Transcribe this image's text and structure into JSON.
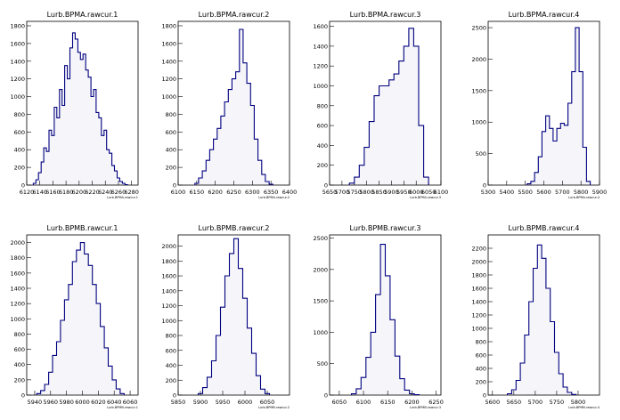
{
  "chart_data": [
    {
      "type": "histogram",
      "title": "Lurb.BPMA.rawcur.1",
      "axis_note": "Lurb.BPMA.rawcur.1",
      "xlim": [
        6120,
        6290
      ],
      "ylim": [
        0,
        1850
      ],
      "x_ticks": [
        6120,
        6140,
        6160,
        6180,
        6200,
        6220,
        6240,
        6260,
        6280
      ],
      "y_ticks": [
        0,
        200,
        400,
        600,
        800,
        1000,
        1200,
        1400,
        1600,
        1800
      ],
      "x": [
        6132,
        6136,
        6140,
        6144,
        6148,
        6152,
        6156,
        6160,
        6164,
        6168,
        6172,
        6176,
        6180,
        6184,
        6188,
        6192,
        6196,
        6200,
        6204,
        6208,
        6212,
        6216,
        6220,
        6224,
        6228,
        6232,
        6236,
        6240,
        6244,
        6248,
        6252,
        6256,
        6260,
        6264,
        6268,
        6272
      ],
      "values": [
        20,
        60,
        140,
        260,
        420,
        380,
        620,
        560,
        880,
        760,
        1080,
        900,
        1350,
        1200,
        1550,
        1720,
        1650,
        1500,
        1420,
        1480,
        1300,
        1220,
        1000,
        1080,
        820,
        760,
        560,
        620,
        400,
        360,
        220,
        160,
        80,
        40,
        20,
        5
      ]
    },
    {
      "type": "histogram",
      "title": "Lurb.BPMA.rawcur.2",
      "axis_note": "Lurb.BPMA.rawcur.2",
      "xlim": [
        6100,
        6400
      ],
      "ylim": [
        0,
        1850
      ],
      "x_ticks": [
        6100,
        6150,
        6200,
        6250,
        6300,
        6350,
        6400
      ],
      "y_ticks": [
        0,
        200,
        400,
        600,
        800,
        1000,
        1200,
        1400,
        1600,
        1800
      ],
      "x": [
        6150,
        6160,
        6170,
        6180,
        6190,
        6200,
        6210,
        6220,
        6230,
        6240,
        6250,
        6260,
        6270,
        6280,
        6290,
        6300,
        6310,
        6320,
        6330,
        6340,
        6350
      ],
      "values": [
        20,
        80,
        160,
        280,
        400,
        520,
        640,
        780,
        940,
        1080,
        1200,
        1280,
        1760,
        1380,
        1150,
        900,
        520,
        280,
        120,
        40,
        10
      ]
    },
    {
      "type": "histogram",
      "title": "Lurb.BPMA.rawcur.3",
      "axis_note": "Lurb.BPMA.rawcur.3",
      "xlim": [
        5650,
        6100
      ],
      "ylim": [
        0,
        1650
      ],
      "x_ticks": [
        5650,
        5700,
        5750,
        5800,
        5850,
        5900,
        5950,
        6000,
        6050,
        6100
      ],
      "y_ticks": [
        0,
        200,
        400,
        600,
        800,
        1000,
        1200,
        1400,
        1600
      ],
      "x": [
        5740,
        5760,
        5780,
        5800,
        5820,
        5840,
        5860,
        5880,
        5900,
        5920,
        5940,
        5960,
        5980,
        6000,
        6020,
        6040
      ],
      "values": [
        20,
        80,
        200,
        380,
        640,
        900,
        1000,
        1000,
        1060,
        1120,
        1250,
        1400,
        1580,
        1400,
        600,
        80
      ]
    },
    {
      "type": "histogram",
      "title": "Lurb.BPMA.rawcur.4",
      "axis_note": "Lurb.BPMA.rawcur.4",
      "xlim": [
        5300,
        5900
      ],
      "ylim": [
        0,
        2600
      ],
      "x_ticks": [
        5300,
        5400,
        5500,
        5600,
        5700,
        5800,
        5900
      ],
      "y_ticks": [
        0,
        500,
        1000,
        1500,
        2000,
        2500
      ],
      "x": [
        5520,
        5540,
        5560,
        5580,
        5600,
        5620,
        5640,
        5660,
        5680,
        5700,
        5720,
        5740,
        5760,
        5780,
        5800,
        5820,
        5840
      ],
      "values": [
        20,
        60,
        200,
        450,
        850,
        1100,
        900,
        700,
        900,
        980,
        950,
        1300,
        1800,
        2500,
        1800,
        600,
        60
      ]
    },
    {
      "type": "histogram",
      "title": "Lurb.BPMB.rawcur.1",
      "axis_note": "Lurb.BPMB.rawcur.1",
      "xlim": [
        5930,
        6070
      ],
      "ylim": [
        0,
        2100
      ],
      "x_ticks": [
        5940,
        5960,
        5980,
        6000,
        6020,
        6040,
        6060
      ],
      "y_ticks": [
        0,
        200,
        400,
        600,
        800,
        1000,
        1200,
        1400,
        1600,
        1800,
        2000
      ],
      "x": [
        5945,
        5950,
        5955,
        5960,
        5965,
        5970,
        5975,
        5980,
        5985,
        5990,
        5995,
        6000,
        6005,
        6010,
        6015,
        6020,
        6025,
        6030,
        6035,
        6040,
        6045,
        6050
      ],
      "values": [
        20,
        60,
        140,
        300,
        520,
        700,
        980,
        1250,
        1450,
        1750,
        1900,
        2000,
        1850,
        1700,
        1450,
        1200,
        900,
        620,
        380,
        200,
        80,
        20
      ]
    },
    {
      "type": "histogram",
      "title": "Lurb.BPMB.rawcur.2",
      "axis_note": "Lurb.BPMB.rawcur.2",
      "xlim": [
        5850,
        6100
      ],
      "ylim": [
        0,
        2150
      ],
      "x_ticks": [
        5850,
        5900,
        5950,
        6000,
        6050
      ],
      "y_ticks": [
        0,
        200,
        400,
        600,
        800,
        1000,
        1200,
        1400,
        1600,
        1800,
        2000
      ],
      "x": [
        5900,
        5910,
        5920,
        5930,
        5940,
        5950,
        5960,
        5970,
        5980,
        5990,
        6000,
        6010,
        6020,
        6030,
        6040,
        6050
      ],
      "values": [
        20,
        100,
        240,
        460,
        800,
        1180,
        1600,
        1900,
        2100,
        1700,
        1300,
        900,
        560,
        260,
        80,
        20
      ]
    },
    {
      "type": "histogram",
      "title": "Lurb.BPMB.rawcur.3",
      "axis_note": "Lurb.BPMB.rawcur.3",
      "xlim": [
        6030,
        6260
      ],
      "ylim": [
        0,
        2550
      ],
      "x_ticks": [
        6050,
        6100,
        6150,
        6200,
        6250
      ],
      "y_ticks": [
        0,
        500,
        1000,
        1500,
        2000,
        2500
      ],
      "x": [
        6080,
        6090,
        6100,
        6110,
        6120,
        6130,
        6140,
        6150,
        6160,
        6170,
        6180,
        6190,
        6200,
        6210
      ],
      "values": [
        20,
        100,
        280,
        600,
        1000,
        1600,
        2400,
        1900,
        1200,
        620,
        260,
        80,
        20,
        5
      ]
    },
    {
      "type": "histogram",
      "title": "Lurb.BPMB.rawcur.4",
      "axis_note": "Lurb.BPMB.rawcur.4",
      "xlim": [
        5590,
        5850
      ],
      "ylim": [
        0,
        2400
      ],
      "x_ticks": [
        5600,
        5650,
        5700,
        5750,
        5800
      ],
      "y_ticks": [
        0,
        200,
        400,
        600,
        800,
        1000,
        1200,
        1400,
        1600,
        1800,
        2000,
        2200
      ],
      "x": [
        5640,
        5650,
        5660,
        5670,
        5680,
        5690,
        5700,
        5710,
        5720,
        5730,
        5740,
        5750,
        5760,
        5770,
        5780,
        5790
      ],
      "values": [
        20,
        80,
        220,
        480,
        900,
        1400,
        1900,
        2250,
        2050,
        1600,
        1100,
        640,
        320,
        120,
        40,
        10
      ]
    }
  ],
  "colors": {
    "line": "#00007f",
    "axis": "#000000",
    "background": "#ffffff"
  }
}
